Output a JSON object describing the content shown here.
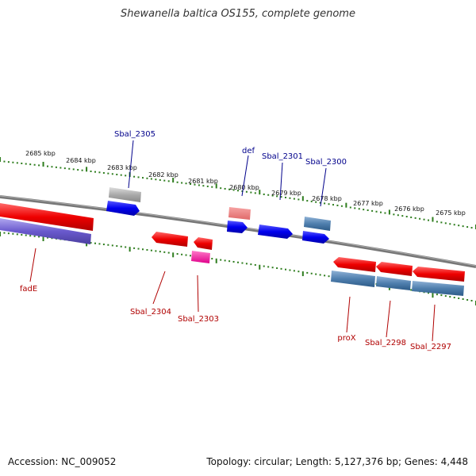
{
  "title": "Shewanella baltica OS155, complete genome",
  "footer": {
    "accession": "Accession: NC_009052",
    "summary": "Topology: circular; Length: 5,127,376 bp; Genes: 4,448"
  },
  "ticks": [
    "2685 kbp",
    "2684 kbp",
    "2683 kbp",
    "2682 kbp",
    "2681 kbp",
    "2680 kbp",
    "2679 kbp",
    "2678 kbp",
    "2677 kbp",
    "2676 kbp",
    "2675 kbp"
  ],
  "top_labels": [
    "Sbal_2305",
    "def",
    "Sbal_2301",
    "Sbal_2300"
  ],
  "bottom_labels": [
    "fadE",
    "Sbal_2304",
    "Sbal_2303",
    "proX",
    "Sbal_2298",
    "Sbal_2297"
  ],
  "colors": {
    "forward_gene": "#0000ee",
    "reverse_gene": "#ee0000",
    "label_top": "#00008b",
    "label_bottom": "#b00000",
    "scale_tick": "#2e7d1e",
    "backbone": "#777777",
    "rna": "#4f7fae",
    "pseudo": "#aaaaaa"
  }
}
